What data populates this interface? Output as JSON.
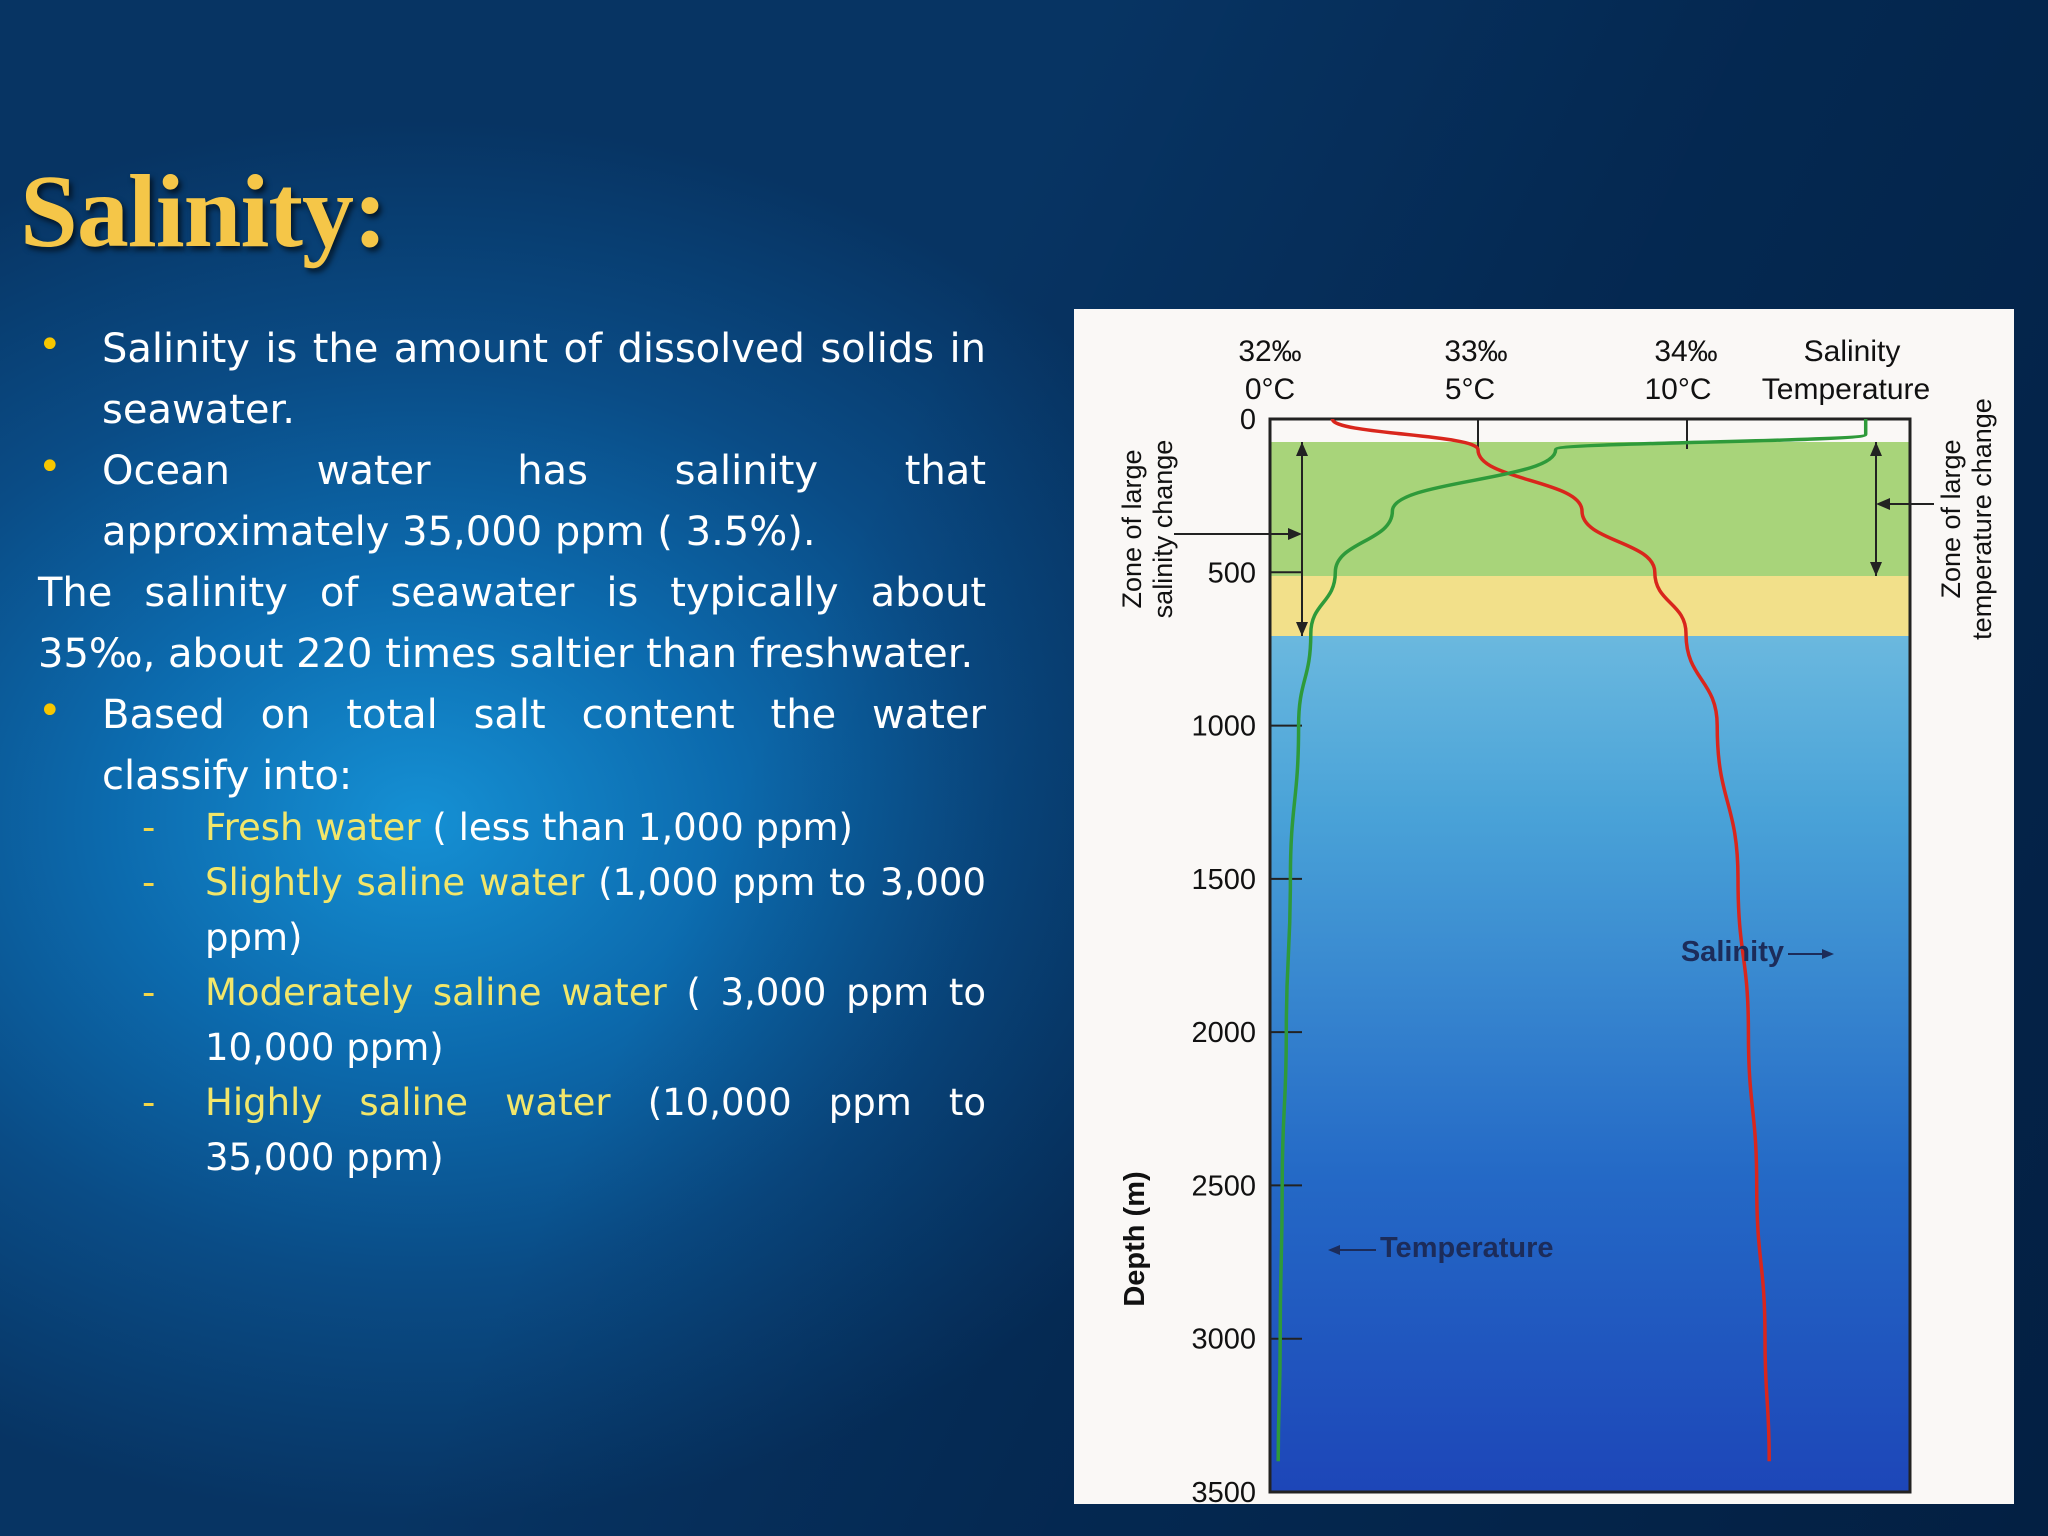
{
  "slide": {
    "title": "Salinity:",
    "bullet1": "Salinity is the amount of dissolved solids in seawater.",
    "bullet2": "Ocean water has salinity that approximately 35,000 ppm ( 3.5%).",
    "para": "The salinity of seawater is typically about 35‰, about 220 times saltier than freshwater.",
    "bullet3": "Based on total salt content the water classify into:",
    "bullet_glyph": "•",
    "dash_glyph": "-",
    "classes": [
      {
        "name": "Fresh water",
        "range": " ( less than 1,000 ppm)"
      },
      {
        "name": "Slightly saline water",
        "range": " (1,000 ppm to 3,000 ppm)"
      },
      {
        "name": "Moderately saline water",
        "range": " ( 3,000 ppm to 10,000 ppm)"
      },
      {
        "name": "Highly saline water",
        "range": " (10,000 ppm to 35,000 ppm)"
      }
    ]
  },
  "figure": {
    "salinity_ticks": [
      "32‰",
      "33‰",
      "34‰"
    ],
    "temperature_ticks": [
      "0°C",
      "5°C",
      "10°C"
    ],
    "salinity_header": "Salinity",
    "temperature_header": "Temperature",
    "left_zone_line1": "Zone of large",
    "left_zone_line2": "salinity change",
    "right_zone_line1": "Zone of large",
    "right_zone_line2": "temperature change",
    "y_axis_label": "Depth (m)",
    "depth_ticks": [
      "0",
      "500",
      "1000",
      "1500",
      "2000",
      "2500",
      "3000",
      "3500"
    ],
    "salinity_label": "Salinity",
    "temperature_label": "Temperature",
    "colors": {
      "salinity_curve": "#d9261c",
      "temperature_curve": "#2e9a3a",
      "mixed_zone": "#a8d47a",
      "transition_zone": "#f2e08a"
    }
  },
  "chart_data": {
    "type": "line",
    "ylabel": "Depth (m)",
    "ylim": [
      3500,
      0
    ],
    "xlim_salinity": [
      32,
      34.5
    ],
    "xlim_temperature": [
      0,
      15
    ],
    "series": [
      {
        "name": "Salinity",
        "unit": "‰",
        "points": [
          [
            32.3,
            0
          ],
          [
            33.0,
            100
          ],
          [
            33.5,
            300
          ],
          [
            33.85,
            500
          ],
          [
            34.0,
            700
          ],
          [
            34.15,
            1000
          ],
          [
            34.25,
            1500
          ],
          [
            34.3,
            2000
          ],
          [
            34.34,
            2500
          ],
          [
            34.38,
            3000
          ],
          [
            34.4,
            3400
          ]
        ]
      },
      {
        "name": "Temperature",
        "unit": "°C",
        "points": [
          [
            14.6,
            0
          ],
          [
            14.6,
            50
          ],
          [
            7.0,
            100
          ],
          [
            3.0,
            300
          ],
          [
            1.6,
            500
          ],
          [
            1.0,
            700
          ],
          [
            0.7,
            1000
          ],
          [
            0.5,
            1500
          ],
          [
            0.4,
            2000
          ],
          [
            0.3,
            2500
          ],
          [
            0.25,
            3000
          ],
          [
            0.2,
            3400
          ]
        ]
      }
    ]
  }
}
